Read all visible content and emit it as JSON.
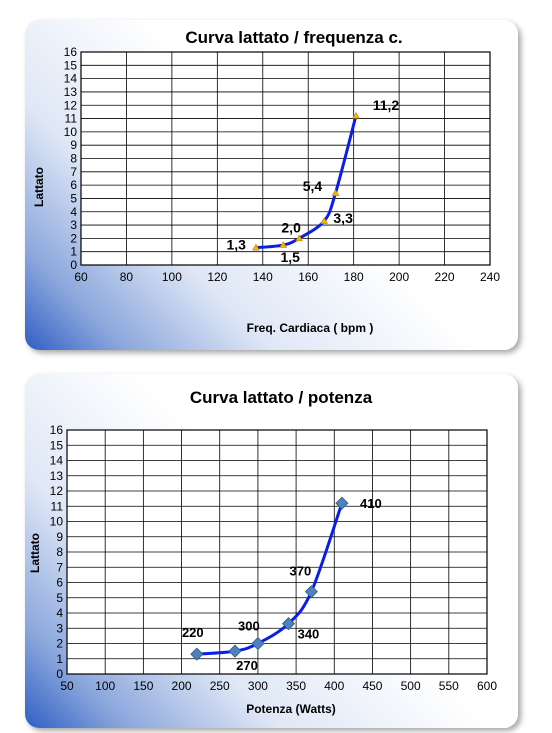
{
  "chart_data": [
    {
      "type": "line",
      "title": "Curva lattato / frequenza c.",
      "xlabel": "Freq. Cardiaca ( bpm )",
      "ylabel": "Lattato",
      "xlim": [
        60,
        240
      ],
      "ylim": [
        0,
        16
      ],
      "x_ticks": [
        60,
        80,
        100,
        120,
        140,
        160,
        180,
        200,
        220,
        240
      ],
      "y_ticks": [
        0,
        1,
        2,
        3,
        4,
        5,
        6,
        7,
        8,
        9,
        10,
        11,
        12,
        13,
        14,
        15,
        16
      ],
      "grid": true,
      "marker": "triangle",
      "line_color": "#0b1ee6",
      "marker_color": "#f2b400",
      "series": [
        {
          "x": [
            137,
            149,
            156,
            167,
            172,
            181
          ],
          "y": [
            1.3,
            1.5,
            2.0,
            3.3,
            5.4,
            11.2
          ]
        }
      ],
      "point_labels": [
        "1,3",
        "1,5",
        "2,0",
        "3,3",
        "5,4",
        "11,2"
      ]
    },
    {
      "type": "line",
      "title": "Curva lattato / potenza",
      "xlabel": "Potenza  (Watts)",
      "ylabel": "Lattato",
      "xlim": [
        50,
        600
      ],
      "ylim": [
        0,
        16
      ],
      "x_ticks": [
        50,
        100,
        150,
        200,
        250,
        300,
        350,
        400,
        450,
        500,
        550,
        600
      ],
      "y_ticks": [
        0,
        1,
        2,
        3,
        4,
        5,
        6,
        7,
        8,
        9,
        10,
        11,
        12,
        13,
        14,
        15,
        16
      ],
      "grid": true,
      "marker": "diamond",
      "line_color": "#0b1ee6",
      "marker_color": "#4f81bd",
      "series": [
        {
          "x": [
            220,
            270,
            300,
            340,
            370,
            410
          ],
          "y": [
            1.3,
            1.5,
            2.0,
            3.3,
            5.4,
            11.2
          ]
        }
      ],
      "point_labels": [
        "220",
        "270",
        "300",
        "340",
        "370",
        "410"
      ]
    }
  ]
}
